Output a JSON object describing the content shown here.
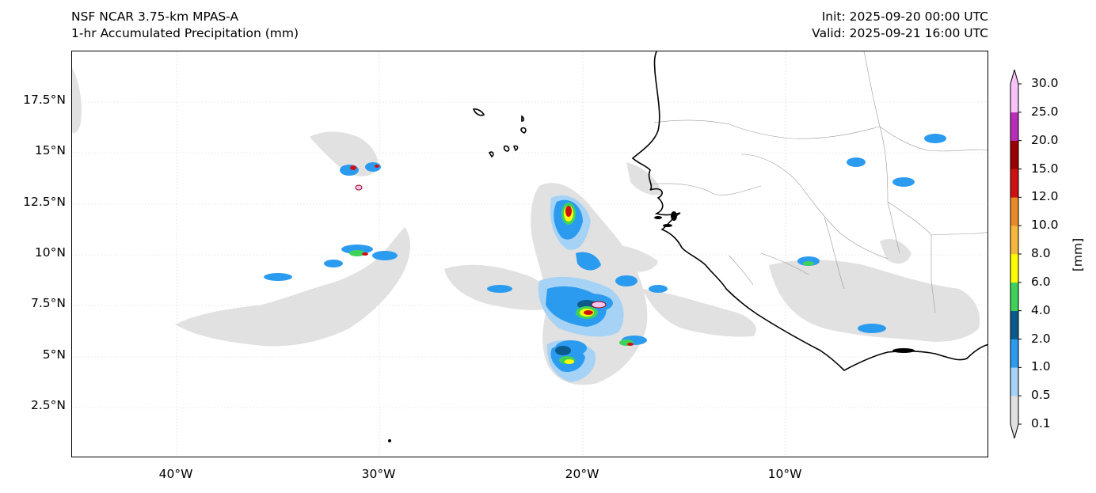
{
  "title_left": {
    "line1": "NSF NCAR 3.75-km MPAS-A",
    "line2": "1-hr Accumulated Precipitation (mm)"
  },
  "title_right": {
    "line1": "Init: 2025-09-20 00:00 UTC",
    "line2": "Valid: 2025-09-21 16:00 UTC"
  },
  "map": {
    "lat_ticks": [
      "17.5°N",
      "15°N",
      "12.5°N",
      "10°N",
      "7.5°N",
      "5°N",
      "2.5°N"
    ],
    "lon_ticks": [
      "40°W",
      "30°W",
      "20°W",
      "10°W"
    ]
  },
  "colorbar": {
    "units": "[mm]",
    "levels": [
      "0.1",
      "0.5",
      "1.0",
      "2.0",
      "4.0",
      "6.0",
      "8.0",
      "10.0",
      "12.0",
      "15.0",
      "20.0",
      "25.0",
      "30.0"
    ],
    "colors": [
      "#e1e1e1",
      "#a6d3f5",
      "#2b9bf0",
      "#0a5a8c",
      "#3fd25a",
      "#ffff00",
      "#f5b83c",
      "#ea8a26",
      "#cf1111",
      "#9b0000",
      "#b82eb8",
      "#f7c2f5"
    ]
  }
}
